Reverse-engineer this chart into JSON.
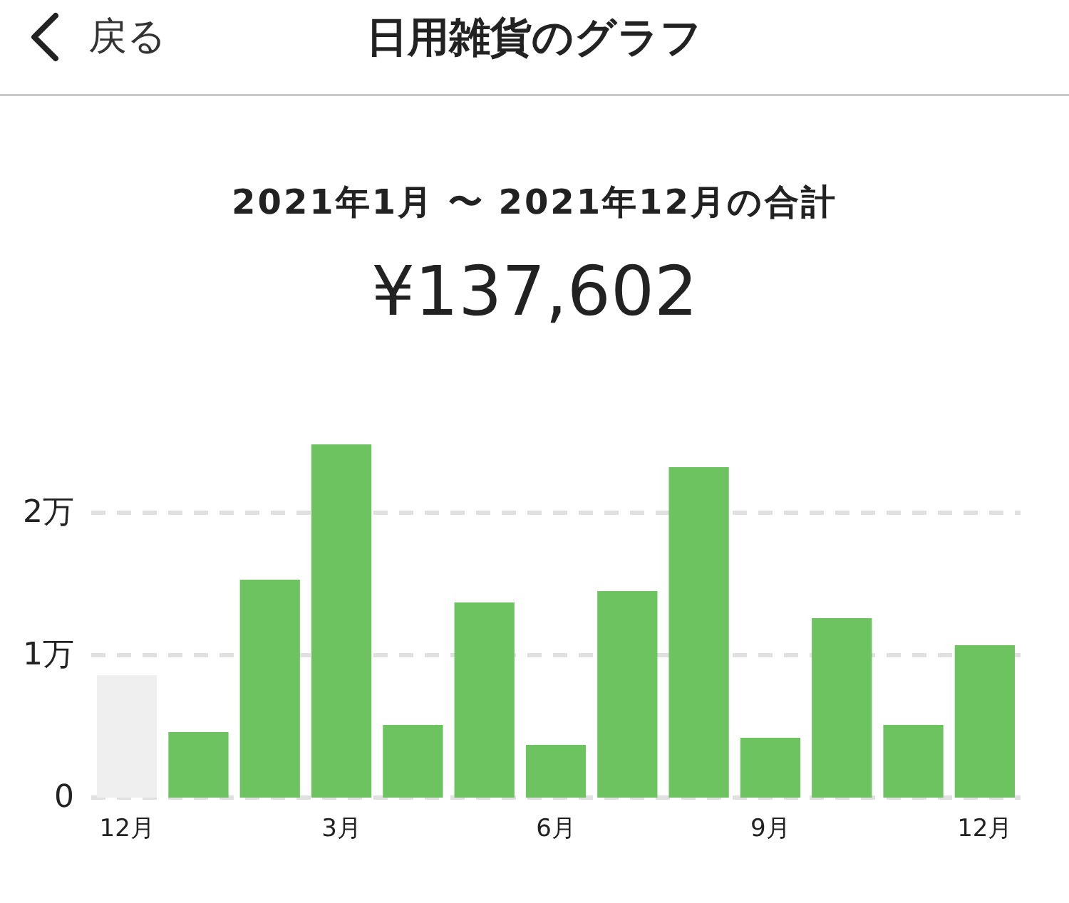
{
  "chart_data": {
    "type": "bar",
    "title": "日用雑貨のグラフ",
    "subtitle": "2021年1月 〜 2021年12月の合計",
    "annotations": [
      "戻る",
      "¥137,602"
    ],
    "categories": [
      "12月",
      null,
      null,
      "3月",
      null,
      null,
      "6月",
      null,
      null,
      "9月",
      null,
      null,
      "12月"
    ],
    "values": [
      0.86,
      0.46,
      1.53,
      2.48,
      0.51,
      1.37,
      0.37,
      1.45,
      2.32,
      0.42,
      1.26,
      0.51,
      1.07
    ],
    "colors": [
      "#efefef",
      "#6cc35f",
      "#6cc35f",
      "#6cc35f",
      "#6cc35f",
      "#6cc35f",
      "#6cc35f",
      "#6cc35f",
      "#6cc35f",
      "#6cc35f",
      "#6cc35f",
      "#6cc35f",
      "#6cc35f"
    ],
    "ylim": [
      0,
      2.5
    ],
    "yticks": [
      0,
      {
        "value": 1,
        "label": "1万"
      },
      {
        "value": 2,
        "label": "2万"
      }
    ],
    "grid": "y"
  }
}
